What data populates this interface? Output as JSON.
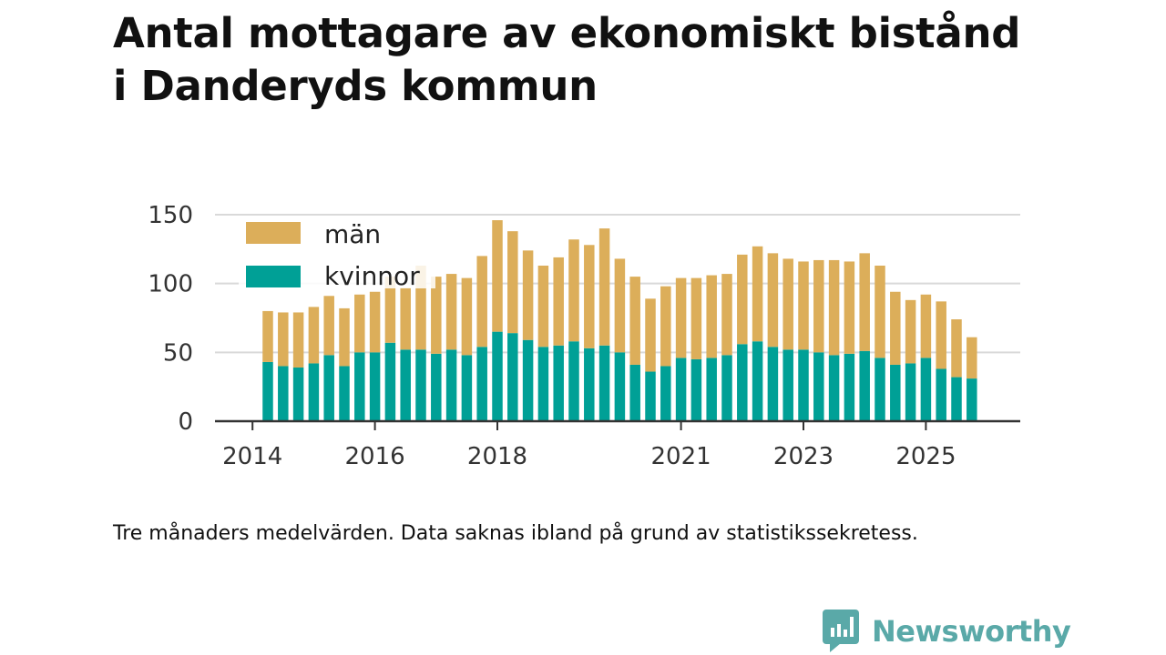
{
  "title_lines": [
    "Antal mottagare av ekonomiskt bistånd",
    "i Danderyds kommun"
  ],
  "footnote": "Tre månaders medelvärden. Data saknas ibland på grund av statistikssekretess.",
  "brand": {
    "name": "Newsworthy",
    "color": "#5aa9a8"
  },
  "colors": {
    "man": "#dcae5a",
    "kvinnor": "#00a096",
    "grid": "#d9d9d9",
    "axis": "#333333"
  },
  "chart_data": {
    "type": "bar",
    "stacked": true,
    "title": "Antal mottagare av ekonomiskt bistånd i Danderyds kommun",
    "xlabel": "",
    "ylabel": "",
    "ylim": [
      0,
      150
    ],
    "yticks": [
      0,
      50,
      100,
      150
    ],
    "xticks": [
      {
        "label": "2014",
        "index": -1
      },
      {
        "label": "2016",
        "index": 7
      },
      {
        "label": "2018",
        "index": 15
      },
      {
        "label": "2021",
        "index": 27
      },
      {
        "label": "2023",
        "index": 35
      },
      {
        "label": "2025",
        "index": 43
      }
    ],
    "legend": {
      "position": "top-left",
      "entries": [
        {
          "key": "man",
          "label": "män"
        },
        {
          "key": "kvinnor",
          "label": "kvinnor"
        }
      ]
    },
    "series": [
      {
        "name": "kvinnor",
        "key": "kvinnor",
        "values": [
          43,
          40,
          39,
          42,
          48,
          40,
          50,
          50,
          57,
          52,
          52,
          49,
          52,
          48,
          54,
          65,
          64,
          59,
          54,
          55,
          58,
          53,
          55,
          50,
          41,
          36,
          40,
          46,
          45,
          46,
          48,
          56,
          58,
          54,
          52,
          52,
          50,
          48,
          49,
          51,
          46,
          41,
          42,
          46,
          38,
          32,
          31
        ]
      },
      {
        "name": "män",
        "key": "man",
        "values": [
          37,
          39,
          40,
          41,
          43,
          42,
          42,
          44,
          48,
          45,
          61,
          56,
          55,
          56,
          66,
          81,
          74,
          65,
          59,
          64,
          74,
          75,
          85,
          68,
          64,
          53,
          58,
          58,
          59,
          60,
          59,
          65,
          69,
          68,
          66,
          64,
          67,
          69,
          67,
          71,
          67,
          53,
          46,
          46,
          49,
          42,
          30
        ]
      }
    ]
  }
}
